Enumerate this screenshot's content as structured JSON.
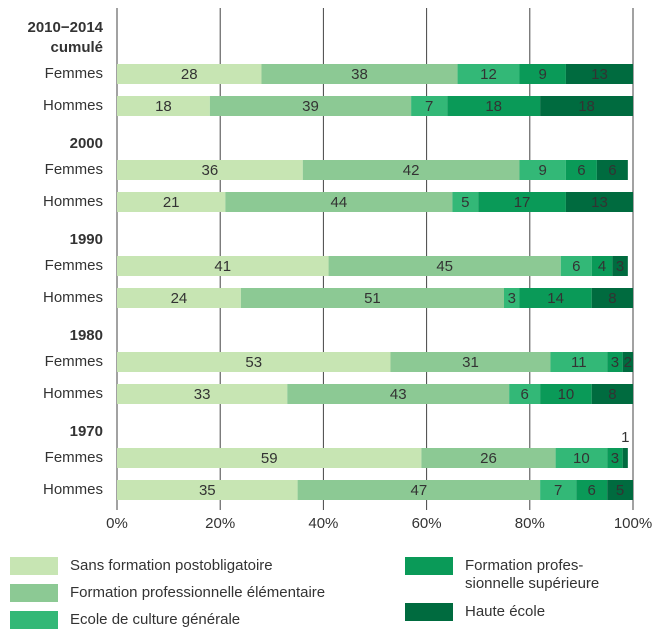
{
  "chart_data": {
    "type": "stacked-barh",
    "groups": [
      [
        "2010−2014",
        "cumulé"
      ],
      [
        "2000"
      ],
      [
        "1990"
      ],
      [
        "1980"
      ],
      [
        "1970"
      ]
    ],
    "categories": [
      "Femmes",
      "Hommes",
      "Femmes",
      "Hommes",
      "Femmes",
      "Hommes",
      "Femmes",
      "Hommes",
      "Femmes",
      "Hommes"
    ],
    "series": [
      {
        "name": "Sans formation postobligatoire",
        "color": "#c7e5b3",
        "label_color": "#333",
        "values": [
          28,
          18,
          36,
          21,
          41,
          24,
          53,
          33,
          59,
          35
        ]
      },
      {
        "name": "Formation professionnelle élémentaire",
        "color": "#8cc994",
        "label_color": "#333",
        "values": [
          38,
          39,
          42,
          44,
          45,
          51,
          31,
          43,
          26,
          47
        ]
      },
      {
        "name": "Ecole de culture générale",
        "color": "#33b877",
        "label_color": "#fff",
        "values": [
          12,
          7,
          9,
          5,
          6,
          3,
          11,
          6,
          10,
          7
        ]
      },
      {
        "name": "Formation profes-\nsionnelle supérieure",
        "color": "#0a9a58",
        "label_color": "#fff",
        "values": [
          9,
          18,
          6,
          17,
          4,
          14,
          3,
          10,
          3,
          6
        ]
      },
      {
        "name": "Haute école",
        "color": "#006b3f",
        "label_color": "#fff",
        "values": [
          13,
          18,
          6,
          13,
          3,
          8,
          2,
          8,
          1,
          5
        ]
      }
    ],
    "xlim": [
      0,
      100
    ],
    "xticks": [
      {
        "value": 0,
        "label": "0%"
      },
      {
        "value": 20,
        "label": "20%"
      },
      {
        "value": 40,
        "label": "40%"
      },
      {
        "value": 60,
        "label": "60%"
      },
      {
        "value": 80,
        "label": "80%"
      },
      {
        "value": 100,
        "label": "100%"
      }
    ],
    "grid": true
  }
}
